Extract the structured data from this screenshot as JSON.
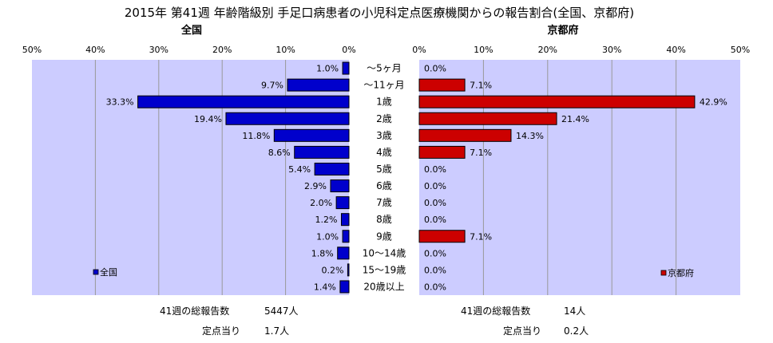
{
  "title": "2015年 第41週 年齢階級別 手足口病患者の小児科定点医療機関からの報告割合(全国、京都府)",
  "chart_data": [
    {
      "type": "bar",
      "orientation": "horizontal",
      "panel_title": "全国",
      "direction": "right-to-left",
      "categories": [
        "～5ヶ月",
        "～11ヶ月",
        "1歳",
        "2歳",
        "3歳",
        "4歳",
        "5歳",
        "6歳",
        "7歳",
        "8歳",
        "9歳",
        "10～14歳",
        "15～19歳",
        "20歳以上"
      ],
      "values": [
        1.0,
        9.7,
        33.3,
        19.4,
        11.8,
        8.6,
        5.4,
        2.9,
        2.0,
        1.2,
        1.0,
        1.8,
        0.2,
        1.4
      ],
      "value_labels": [
        "1.0%",
        "9.7%",
        "33.3%",
        "19.4%",
        "11.8%",
        "8.6%",
        "5.4%",
        "2.9%",
        "2.0%",
        "1.2%",
        "1.0%",
        "1.8%",
        "0.2%",
        "1.4%"
      ],
      "legend": "全国",
      "legend_position": "bottom-left",
      "xlim": [
        0,
        50
      ],
      "ticks": [
        "0%",
        "10%",
        "20%",
        "30%",
        "40%",
        "50%"
      ],
      "grid": true,
      "color": "#0000cc",
      "plot_background": "#ccccff"
    },
    {
      "type": "bar",
      "orientation": "horizontal",
      "panel_title": "京都府",
      "direction": "left-to-right",
      "categories": [
        "～5ヶ月",
        "～11ヶ月",
        "1歳",
        "2歳",
        "3歳",
        "4歳",
        "5歳",
        "6歳",
        "7歳",
        "8歳",
        "9歳",
        "10～14歳",
        "15～19歳",
        "20歳以上"
      ],
      "values": [
        0.0,
        7.1,
        42.9,
        21.4,
        14.3,
        7.1,
        0.0,
        0.0,
        0.0,
        0.0,
        7.1,
        0.0,
        0.0,
        0.0
      ],
      "value_labels": [
        "0.0%",
        "7.1%",
        "42.9%",
        "21.4%",
        "14.3%",
        "7.1%",
        "0.0%",
        "0.0%",
        "0.0%",
        "0.0%",
        "7.1%",
        "0.0%",
        "0.0%",
        "0.0%"
      ],
      "legend": "京都府",
      "legend_position": "bottom-right",
      "xlim": [
        0,
        50
      ],
      "ticks": [
        "0%",
        "10%",
        "20%",
        "30%",
        "40%",
        "50%"
      ],
      "grid": true,
      "color": "#cc0000",
      "plot_background": "#ccccff"
    }
  ],
  "footer": {
    "left": {
      "reports_label": "41週の総報告数",
      "reports_value": "5447人",
      "per_point_label": "定点当り",
      "per_point_value": "1.7人"
    },
    "right": {
      "reports_label": "41週の総報告数",
      "reports_value": "14人",
      "per_point_label": "定点当り",
      "per_point_value": "0.2人"
    }
  }
}
